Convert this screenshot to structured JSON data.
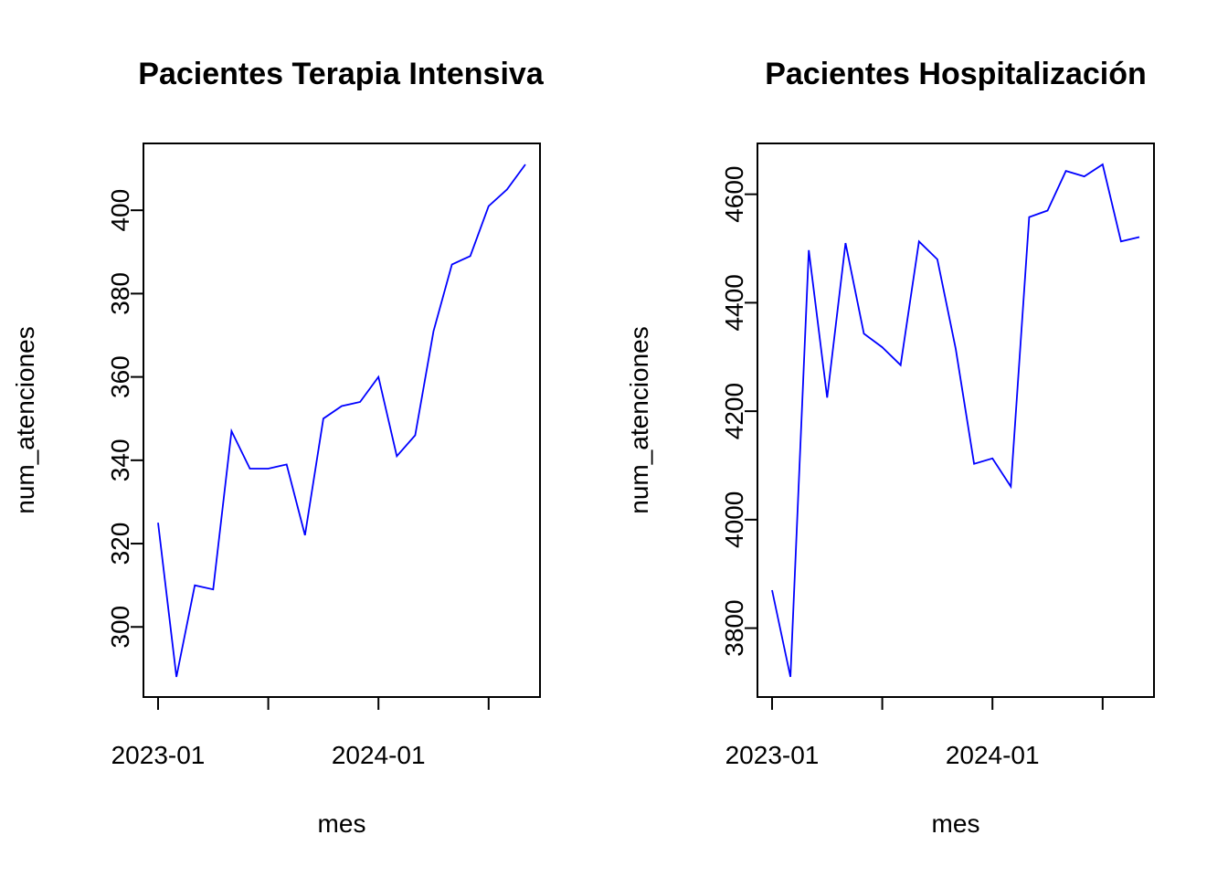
{
  "chart_data": [
    {
      "type": "line",
      "title": "Pacientes Terapia Intensiva",
      "xlabel": "mes",
      "ylabel": "num_atenciones",
      "x": [
        "2023-01",
        "2023-02",
        "2023-03",
        "2023-04",
        "2023-05",
        "2023-06",
        "2023-07",
        "2023-08",
        "2023-09",
        "2023-10",
        "2023-11",
        "2023-12",
        "2024-01",
        "2024-02",
        "2024-03",
        "2024-04",
        "2024-05",
        "2024-06",
        "2024-07",
        "2024-08",
        "2024-09"
      ],
      "series": [
        {
          "values": [
            325,
            288,
            310,
            309,
            347,
            338,
            338,
            339,
            322,
            350,
            353,
            354,
            360,
            341,
            346,
            371,
            387,
            389,
            401,
            405,
            411
          ]
        }
      ],
      "ylim": [
        288,
        411
      ],
      "y_ticks": [
        300,
        320,
        340,
        360,
        380,
        400
      ],
      "x_ticks": [
        "2023-01",
        "2024-01"
      ],
      "x_minor_ticks": [
        "2023-07",
        "2024-07"
      ],
      "color": "#0000ff",
      "grid": false
    },
    {
      "type": "line",
      "title": "Pacientes Hospitalización",
      "xlabel": "mes",
      "ylabel": "num_atenciones",
      "x": [
        "2023-01",
        "2023-02",
        "2023-03",
        "2023-04",
        "2023-05",
        "2023-06",
        "2023-07",
        "2023-08",
        "2023-09",
        "2023-10",
        "2023-11",
        "2023-12",
        "2024-01",
        "2024-02",
        "2024-03",
        "2024-04",
        "2024-05",
        "2024-06",
        "2024-07",
        "2024-08",
        "2024-09"
      ],
      "series": [
        {
          "values": [
            3870,
            3710,
            4497,
            4225,
            4510,
            4343,
            4318,
            4285,
            4513,
            4480,
            4315,
            4103,
            4113,
            4061,
            4558,
            4570,
            4643,
            4633,
            4655,
            4513,
            4521
          ]
        }
      ],
      "ylim": [
        3710,
        4655
      ],
      "y_ticks": [
        3800,
        4000,
        4200,
        4400,
        4600
      ],
      "x_ticks": [
        "2023-01",
        "2024-01"
      ],
      "x_minor_ticks": [
        "2023-07",
        "2024-07"
      ],
      "color": "#0000ff",
      "grid": false
    }
  ]
}
